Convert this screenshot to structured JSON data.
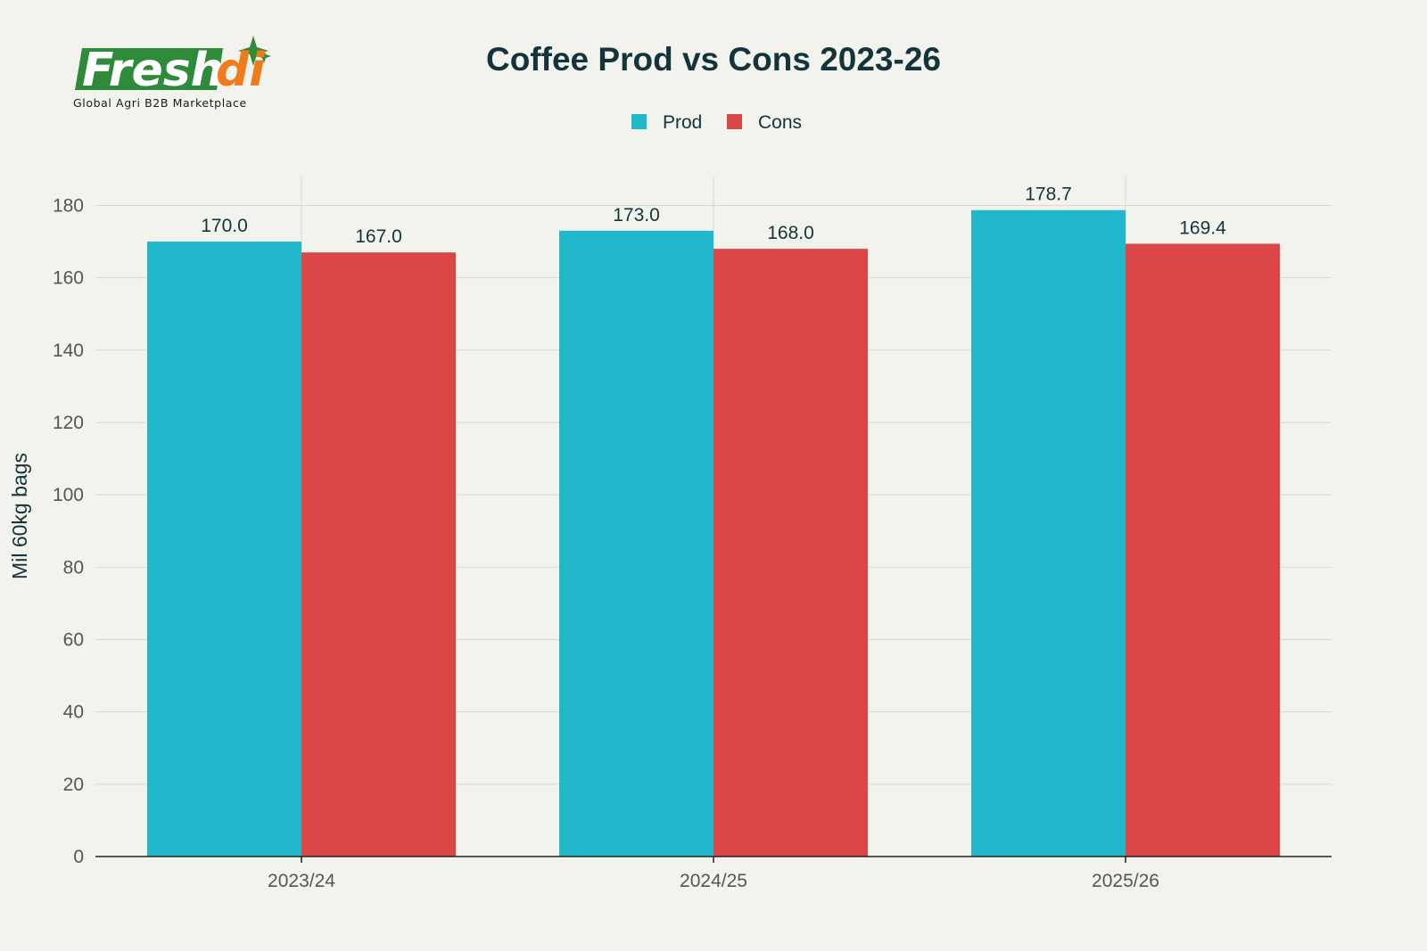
{
  "logo": {
    "wordmark": "Freshdi",
    "tagline": "Global Agri B2B Marketplace",
    "colors": {
      "green": "#2e8b3a",
      "orange": "#f07b1d",
      "star": "#2e8b3a"
    }
  },
  "chart_data": {
    "type": "bar",
    "title": "Coffee Prod vs Cons 2023-26",
    "xlabel": "",
    "ylabel": "Mil 60kg bags",
    "categories": [
      "2023/24",
      "2024/25",
      "2025/26"
    ],
    "series": [
      {
        "name": "Prod",
        "values": [
          170.0,
          173.0,
          178.7
        ],
        "labels": [
          "170.0",
          "173.0",
          "178.7"
        ],
        "color": "#21b8cc"
      },
      {
        "name": "Cons",
        "values": [
          167.0,
          168.0,
          169.4
        ],
        "labels": [
          "167.0",
          "168.0",
          "169.4"
        ],
        "color": "#db4646"
      }
    ],
    "ylim": [
      0,
      188
    ],
    "yticks": [
      0,
      20,
      40,
      60,
      80,
      100,
      120,
      140,
      160,
      180
    ],
    "grid": true,
    "legend_position": "top-center"
  }
}
